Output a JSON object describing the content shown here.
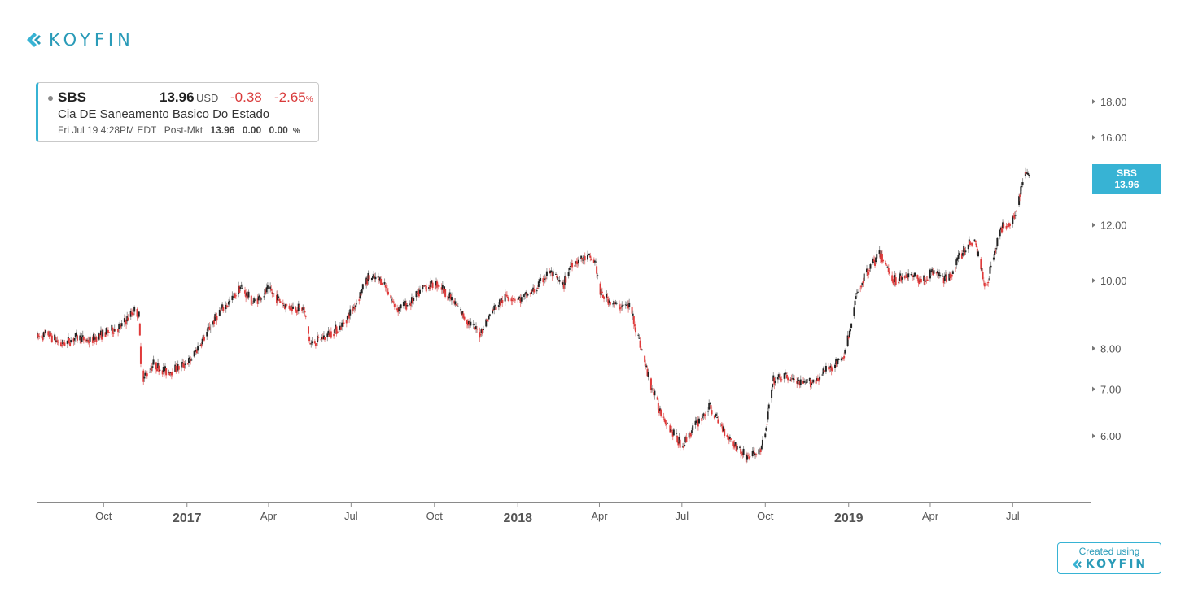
{
  "brand": {
    "name": "KOYFIN",
    "accent": "#37b3d4",
    "logo_icon": "koyfin-chevron-icon"
  },
  "quote": {
    "ticker": "SBS",
    "price": "13.96",
    "currency": "USD",
    "change": "-0.38",
    "change_pct": "-2.65",
    "pct_sign": "%",
    "company": "Cia DE Saneamento Basico Do Estado",
    "timestamp": "Fri Jul 19 4:28PM EDT",
    "session_label": "Post-Mkt",
    "session_price": "13.96",
    "session_change": "0.00",
    "session_pct": "0.00"
  },
  "price_tag": {
    "label": "SBS",
    "value": "13.96"
  },
  "footer": {
    "created_using": "Created using",
    "brand": "KOYFIN"
  },
  "chart_data": {
    "type": "line",
    "style": "candlestick",
    "y_scale": "log",
    "ylim": [
      4.9,
      19.5
    ],
    "y_ticks": [
      "6.00",
      "7.00",
      "8.00",
      "10.00",
      "12.00",
      "16.00",
      "18.00"
    ],
    "x_labels": [
      {
        "label": "Oct",
        "date": "2016-10-01",
        "bold": false
      },
      {
        "label": "2017",
        "date": "2017-01-01",
        "bold": true
      },
      {
        "label": "Apr",
        "date": "2017-04-01",
        "bold": false
      },
      {
        "label": "Jul",
        "date": "2017-07-01",
        "bold": false
      },
      {
        "label": "Oct",
        "date": "2017-10-01",
        "bold": false
      },
      {
        "label": "2018",
        "date": "2018-01-01",
        "bold": true
      },
      {
        "label": "Apr",
        "date": "2018-04-01",
        "bold": false
      },
      {
        "label": "Jul",
        "date": "2018-07-01",
        "bold": false
      },
      {
        "label": "Oct",
        "date": "2018-10-01",
        "bold": false
      },
      {
        "label": "2019",
        "date": "2019-01-01",
        "bold": true
      },
      {
        "label": "Apr",
        "date": "2019-04-01",
        "bold": false
      },
      {
        "label": "Jul",
        "date": "2019-07-01",
        "bold": false
      }
    ],
    "xlim": [
      "2016-07-20",
      "2019-08-20"
    ],
    "series": [
      {
        "points": [
          [
            "2016-07-20",
            8.3
          ],
          [
            "2016-08-01",
            8.4
          ],
          [
            "2016-08-15",
            8.1
          ],
          [
            "2016-09-01",
            8.3
          ],
          [
            "2016-09-15",
            8.2
          ],
          [
            "2016-10-01",
            8.4
          ],
          [
            "2016-10-20",
            8.6
          ],
          [
            "2016-11-05",
            9.1
          ],
          [
            "2016-11-09",
            8.9
          ],
          [
            "2016-11-12",
            7.2
          ],
          [
            "2016-11-25",
            7.6
          ],
          [
            "2016-12-10",
            7.4
          ],
          [
            "2016-12-22",
            7.5
          ],
          [
            "2017-01-05",
            7.7
          ],
          [
            "2017-01-20",
            8.3
          ],
          [
            "2017-02-05",
            9.0
          ],
          [
            "2017-02-20",
            9.4
          ],
          [
            "2017-03-01",
            9.8
          ],
          [
            "2017-03-15",
            9.3
          ],
          [
            "2017-04-01",
            9.7
          ],
          [
            "2017-04-20",
            9.2
          ],
          [
            "2017-05-10",
            9.1
          ],
          [
            "2017-05-17",
            8.1
          ],
          [
            "2017-06-01",
            8.3
          ],
          [
            "2017-06-20",
            8.6
          ],
          [
            "2017-07-05",
            9.2
          ],
          [
            "2017-07-20",
            10.1
          ],
          [
            "2017-08-05",
            10.0
          ],
          [
            "2017-08-20",
            9.1
          ],
          [
            "2017-09-05",
            9.3
          ],
          [
            "2017-09-20",
            9.8
          ],
          [
            "2017-10-05",
            9.9
          ],
          [
            "2017-10-20",
            9.4
          ],
          [
            "2017-11-05",
            8.8
          ],
          [
            "2017-11-20",
            8.4
          ],
          [
            "2017-12-05",
            9.1
          ],
          [
            "2017-12-20",
            9.5
          ],
          [
            "2018-01-05",
            9.4
          ],
          [
            "2018-01-20",
            9.7
          ],
          [
            "2018-02-05",
            10.3
          ],
          [
            "2018-02-20",
            9.8
          ],
          [
            "2018-03-01",
            10.6
          ],
          [
            "2018-03-20",
            10.8
          ],
          [
            "2018-03-28",
            10.6
          ],
          [
            "2018-04-01",
            9.6
          ],
          [
            "2018-04-20",
            9.2
          ],
          [
            "2018-05-05",
            9.2
          ],
          [
            "2018-05-15",
            8.2
          ],
          [
            "2018-05-25",
            7.3
          ],
          [
            "2018-06-05",
            6.6
          ],
          [
            "2018-06-20",
            6.1
          ],
          [
            "2018-07-01",
            5.8
          ],
          [
            "2018-07-15",
            6.2
          ],
          [
            "2018-08-01",
            6.6
          ],
          [
            "2018-08-10",
            6.3
          ],
          [
            "2018-08-25",
            5.9
          ],
          [
            "2018-09-10",
            5.6
          ],
          [
            "2018-09-25",
            5.7
          ],
          [
            "2018-10-01",
            6.0
          ],
          [
            "2018-10-05",
            6.6
          ],
          [
            "2018-10-10",
            7.2
          ],
          [
            "2018-10-25",
            7.3
          ],
          [
            "2018-11-10",
            7.1
          ],
          [
            "2018-11-25",
            7.2
          ],
          [
            "2018-12-10",
            7.5
          ],
          [
            "2018-12-25",
            7.7
          ],
          [
            "2019-01-03",
            8.5
          ],
          [
            "2019-01-10",
            9.6
          ],
          [
            "2019-01-25",
            10.5
          ],
          [
            "2019-02-05",
            10.9
          ],
          [
            "2019-02-20",
            10.0
          ],
          [
            "2019-03-05",
            10.2
          ],
          [
            "2019-03-25",
            10.0
          ],
          [
            "2019-04-05",
            10.3
          ],
          [
            "2019-04-20",
            10.0
          ],
          [
            "2019-05-05",
            10.9
          ],
          [
            "2019-05-20",
            11.5
          ],
          [
            "2019-06-01",
            9.7
          ],
          [
            "2019-06-10",
            10.9
          ],
          [
            "2019-06-20",
            12.0
          ],
          [
            "2019-07-01",
            12.2
          ],
          [
            "2019-07-10",
            13.4
          ],
          [
            "2019-07-15",
            14.3
          ],
          [
            "2019-07-19",
            13.96
          ]
        ]
      }
    ]
  }
}
